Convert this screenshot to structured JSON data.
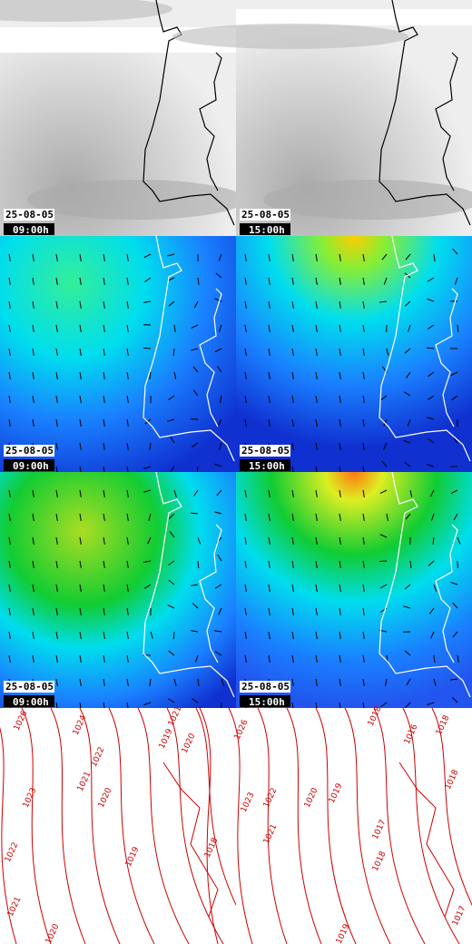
{
  "panels": [
    {
      "date": "25-08-05",
      "time": "09:00h"
    },
    {
      "date": "25-08-05",
      "time": "15:00h"
    },
    {
      "date": "25-08-05",
      "time": "09:00h"
    },
    {
      "date": "25-08-05",
      "time": "15:00h"
    },
    {
      "date": "25-08-05",
      "time": "09:00h"
    },
    {
      "date": "25-08-05",
      "time": "15:00h"
    }
  ],
  "isobar_labels": [
    "1026",
    "1024",
    "1022",
    "1021",
    "1023",
    "1020",
    "1022",
    "1019",
    "1018",
    "1021",
    "1020",
    "1021",
    "1020",
    "1019",
    "1026",
    "1023",
    "1022",
    "1021",
    "1020",
    "1019",
    "1018",
    "1018",
    "1017",
    "1016",
    "1018",
    "1018",
    "1017",
    "1019"
  ]
}
